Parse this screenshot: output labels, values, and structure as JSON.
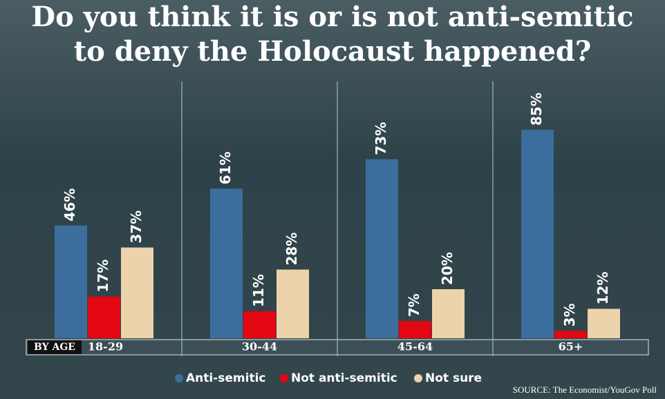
{
  "chart_data": {
    "type": "bar",
    "title": "Do you think it is or is not anti-semitic",
    "subtitle": "to deny the Holocaust happened?",
    "xlabel": "BY AGE",
    "categories": [
      "18-29",
      "30-44",
      "45-64",
      "65+"
    ],
    "series": [
      {
        "name": "Anti-semitic",
        "color": "#3b6e9c",
        "values": [
          46,
          61,
          73,
          85
        ],
        "value_labels": [
          "46%",
          "61%",
          "73%",
          "85%"
        ]
      },
      {
        "name": "Not anti-semitic",
        "color": "#e30613",
        "values": [
          17,
          11,
          7,
          3
        ],
        "value_labels": [
          "17%",
          "11%",
          "7%",
          "3%"
        ]
      },
      {
        "name": "Not sure",
        "color": "#ecd3ac",
        "values": [
          37,
          28,
          20,
          12
        ],
        "value_labels": [
          "37%",
          "28%",
          "20%",
          "12%"
        ]
      }
    ],
    "source": "SOURCE: The Economist/YouGov Poll"
  }
}
